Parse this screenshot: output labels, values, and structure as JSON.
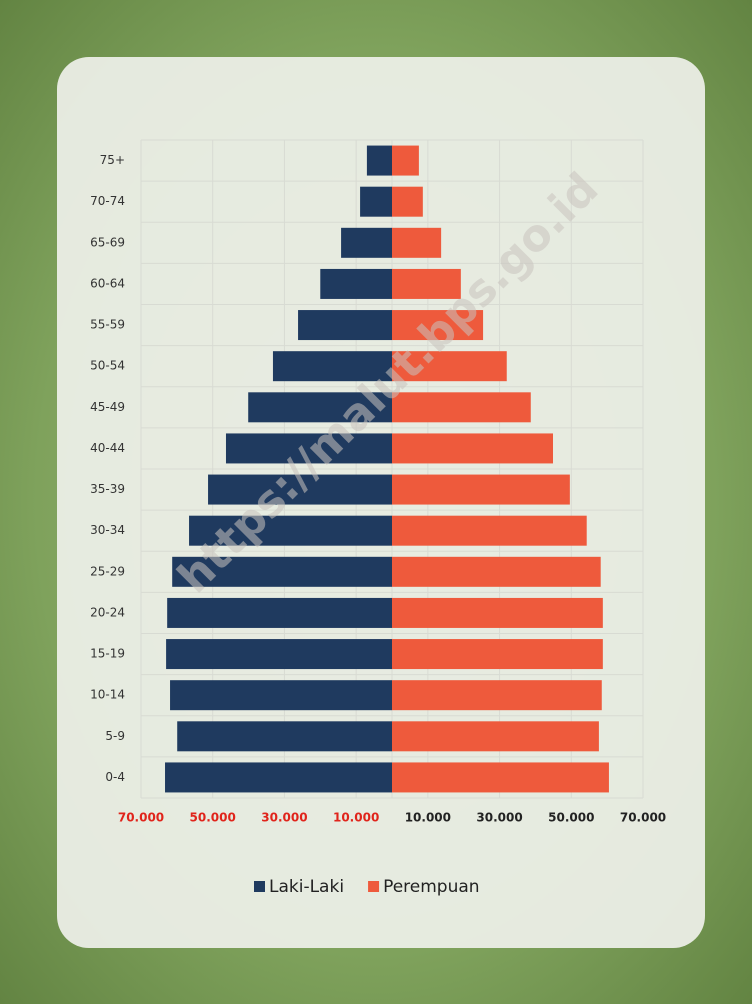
{
  "chart_data": {
    "type": "pyramid",
    "watermark": "https://malut.bps.go.id",
    "categories": [
      "75+",
      "70-74",
      "65-69",
      "60-64",
      "55-59",
      "50-54",
      "45-49",
      "40-44",
      "35-39",
      "30-34",
      "25-29",
      "20-24",
      "15-19",
      "10-14",
      "5-9",
      "0-4"
    ],
    "series": [
      {
        "name": "Laki-Laki",
        "color": "#1f3a5f",
        "side": "left",
        "values": [
          7000,
          8900,
          14200,
          20000,
          26200,
          33200,
          40100,
          46300,
          51300,
          56600,
          61300,
          62700,
          63000,
          61900,
          59900,
          63300
        ]
      },
      {
        "name": "Perempuan",
        "color": "#ee5a3c",
        "side": "right",
        "values": [
          7500,
          8600,
          13700,
          19200,
          25400,
          32000,
          38700,
          44900,
          49600,
          54300,
          58200,
          58800,
          58800,
          58500,
          57700,
          60500
        ]
      }
    ],
    "xlim": [
      0,
      70000
    ],
    "xticks_left": [
      {
        "value": 70000,
        "label": "70.000"
      },
      {
        "value": 50000,
        "label": "50.000"
      },
      {
        "value": 30000,
        "label": "30.000"
      },
      {
        "value": 10000,
        "label": "10.000"
      }
    ],
    "xticks_right": [
      {
        "value": 10000,
        "label": "10.000"
      },
      {
        "value": 30000,
        "label": "30.000"
      },
      {
        "value": 50000,
        "label": "50.000"
      },
      {
        "value": 70000,
        "label": "70.000"
      }
    ],
    "left_tick_color": "#e0241b",
    "right_tick_color": "#222222",
    "grid": true,
    "legend": "bottom"
  }
}
